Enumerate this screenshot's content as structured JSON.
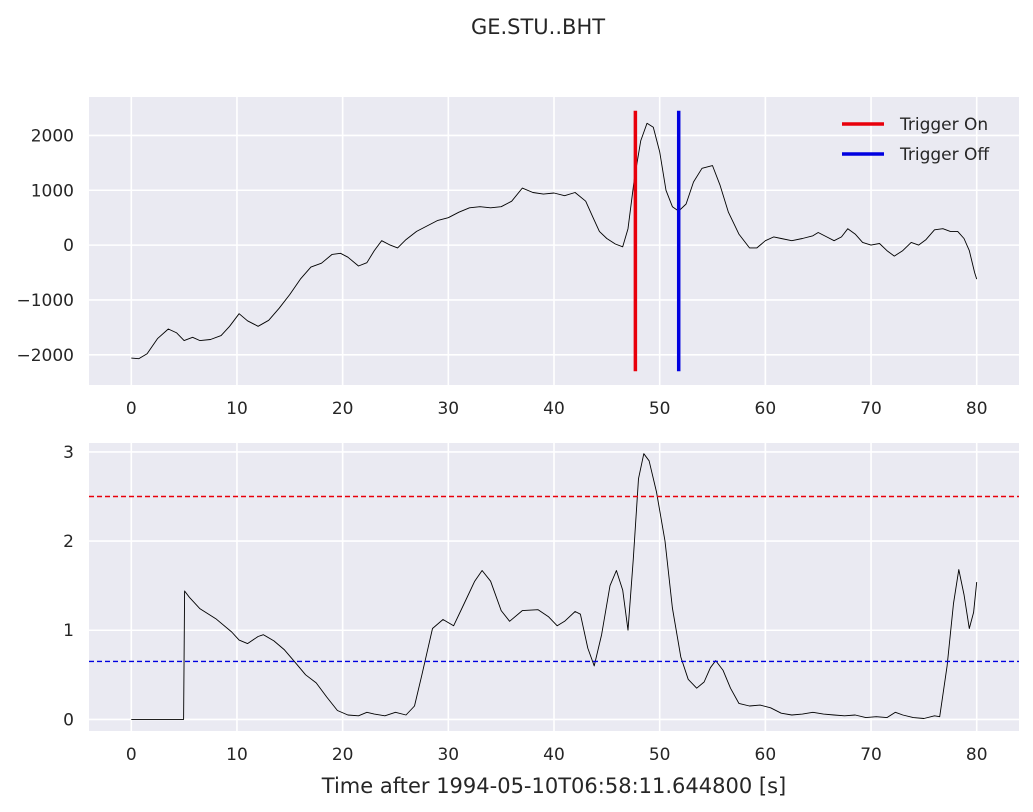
{
  "figure": {
    "title": "GE.STU..BHT",
    "xlabel": "Time after 1994-05-10T06:58:11.644800 [s]"
  },
  "chart_data": [
    {
      "type": "line",
      "name": "trace",
      "xlim": [
        -4,
        84
      ],
      "ylim": [
        -2550,
        2700
      ],
      "xticks": [
        0,
        10,
        20,
        30,
        40,
        50,
        60,
        70,
        80
      ],
      "yticks": [
        -2000,
        -1000,
        0,
        1000,
        2000
      ],
      "ytick_labels": [
        "−2000",
        "−1000",
        "0",
        "1000",
        "2000"
      ],
      "grid": true,
      "legend": {
        "placement": "top-right",
        "entries": [
          {
            "label": "Trigger On",
            "color": "#e8000b"
          },
          {
            "label": "Trigger Off",
            "color": "#0000e0"
          }
        ]
      },
      "trigger_on": {
        "x": 47.7,
        "ymin": -2300,
        "ymax": 2450,
        "color": "#e8000b"
      },
      "trigger_off": {
        "x": 51.8,
        "ymin": -2300,
        "ymax": 2450,
        "color": "#0000e0"
      },
      "series": [
        {
          "color": "#000000",
          "points": [
            [
              0,
              -2060
            ],
            [
              0.7,
              -2070
            ],
            [
              1.5,
              -1980
            ],
            [
              2.5,
              -1700
            ],
            [
              3.5,
              -1530
            ],
            [
              4.3,
              -1600
            ],
            [
              5,
              -1740
            ],
            [
              5.8,
              -1680
            ],
            [
              6.5,
              -1740
            ],
            [
              7.5,
              -1720
            ],
            [
              8.5,
              -1650
            ],
            [
              9.3,
              -1480
            ],
            [
              10.2,
              -1250
            ],
            [
              11,
              -1380
            ],
            [
              12,
              -1480
            ],
            [
              13,
              -1370
            ],
            [
              14,
              -1150
            ],
            [
              15,
              -900
            ],
            [
              16,
              -620
            ],
            [
              17,
              -400
            ],
            [
              18,
              -330
            ],
            [
              19,
              -170
            ],
            [
              19.8,
              -150
            ],
            [
              20.5,
              -220
            ],
            [
              21.5,
              -380
            ],
            [
              22.3,
              -320
            ],
            [
              23,
              -100
            ],
            [
              23.7,
              80
            ],
            [
              24.5,
              0
            ],
            [
              25.2,
              -50
            ],
            [
              26,
              100
            ],
            [
              27,
              250
            ],
            [
              28,
              350
            ],
            [
              29,
              450
            ],
            [
              30,
              500
            ],
            [
              31,
              600
            ],
            [
              32,
              680
            ],
            [
              33,
              700
            ],
            [
              34,
              680
            ],
            [
              35,
              700
            ],
            [
              36,
              800
            ],
            [
              37,
              1040
            ],
            [
              38,
              960
            ],
            [
              39,
              930
            ],
            [
              40,
              950
            ],
            [
              41,
              900
            ],
            [
              42,
              960
            ],
            [
              43,
              800
            ],
            [
              43.7,
              500
            ],
            [
              44.3,
              250
            ],
            [
              45,
              120
            ],
            [
              45.8,
              20
            ],
            [
              46.5,
              -30
            ],
            [
              47,
              300
            ],
            [
              47.6,
              1200
            ],
            [
              48.2,
              1900
            ],
            [
              48.8,
              2220
            ],
            [
              49.4,
              2150
            ],
            [
              50,
              1700
            ],
            [
              50.6,
              1000
            ],
            [
              51.2,
              700
            ],
            [
              51.8,
              620
            ],
            [
              52.5,
              750
            ],
            [
              53.2,
              1150
            ],
            [
              54,
              1400
            ],
            [
              55,
              1450
            ],
            [
              55.7,
              1100
            ],
            [
              56.5,
              600
            ],
            [
              57.5,
              200
            ],
            [
              58.5,
              -50
            ],
            [
              59.2,
              -50
            ],
            [
              60,
              80
            ],
            [
              60.8,
              150
            ],
            [
              61.5,
              120
            ],
            [
              62.5,
              80
            ],
            [
              63.5,
              120
            ],
            [
              64.5,
              170
            ],
            [
              65,
              230
            ],
            [
              65.8,
              150
            ],
            [
              66.5,
              80
            ],
            [
              67.2,
              150
            ],
            [
              67.8,
              300
            ],
            [
              68.5,
              200
            ],
            [
              69.2,
              50
            ],
            [
              70,
              0
            ],
            [
              70.8,
              30
            ],
            [
              71.5,
              -100
            ],
            [
              72.2,
              -200
            ],
            [
              73,
              -100
            ],
            [
              73.8,
              50
            ],
            [
              74.5,
              0
            ],
            [
              75.2,
              100
            ],
            [
              76,
              280
            ],
            [
              76.8,
              300
            ],
            [
              77.5,
              250
            ],
            [
              78.2,
              250
            ],
            [
              78.8,
              120
            ],
            [
              79.3,
              -100
            ],
            [
              79.8,
              -500
            ],
            [
              80,
              -620
            ]
          ]
        }
      ]
    },
    {
      "type": "line",
      "name": "characteristic-function",
      "xlim": [
        -4,
        84
      ],
      "ylim": [
        -0.13,
        3.1
      ],
      "xticks": [
        0,
        10,
        20,
        30,
        40,
        50,
        60,
        70,
        80
      ],
      "yticks": [
        0,
        1,
        2,
        3
      ],
      "grid": true,
      "thresholds": [
        {
          "name": "on",
          "y": 2.5,
          "color": "#e8000b",
          "style": "dashed"
        },
        {
          "name": "off",
          "y": 0.65,
          "color": "#0000e0",
          "style": "dashed"
        }
      ],
      "series": [
        {
          "color": "#000000",
          "points": [
            [
              0,
              0
            ],
            [
              4.95,
              0
            ],
            [
              5.05,
              1.44
            ],
            [
              5.5,
              1.37
            ],
            [
              6.5,
              1.24
            ],
            [
              8,
              1.13
            ],
            [
              9.5,
              0.98
            ],
            [
              10.2,
              0.89
            ],
            [
              11,
              0.85
            ],
            [
              12,
              0.93
            ],
            [
              12.5,
              0.95
            ],
            [
              13.5,
              0.88
            ],
            [
              14.5,
              0.78
            ],
            [
              15.5,
              0.64
            ],
            [
              16.5,
              0.5
            ],
            [
              17.5,
              0.41
            ],
            [
              18.5,
              0.25
            ],
            [
              19.5,
              0.1
            ],
            [
              20.5,
              0.05
            ],
            [
              21.5,
              0.04
            ],
            [
              22.3,
              0.08
            ],
            [
              23,
              0.06
            ],
            [
              24,
              0.04
            ],
            [
              25,
              0.08
            ],
            [
              26,
              0.05
            ],
            [
              26.8,
              0.15
            ],
            [
              27.5,
              0.5
            ],
            [
              28.5,
              1.02
            ],
            [
              29.5,
              1.12
            ],
            [
              30.5,
              1.05
            ],
            [
              31.5,
              1.3
            ],
            [
              32.5,
              1.55
            ],
            [
              33.2,
              1.67
            ],
            [
              34,
              1.55
            ],
            [
              35,
              1.22
            ],
            [
              35.8,
              1.1
            ],
            [
              37,
              1.22
            ],
            [
              38.5,
              1.23
            ],
            [
              39.5,
              1.15
            ],
            [
              40.3,
              1.05
            ],
            [
              41,
              1.1
            ],
            [
              42,
              1.21
            ],
            [
              42.5,
              1.18
            ],
            [
              43.2,
              0.8
            ],
            [
              43.8,
              0.6
            ],
            [
              44.5,
              0.95
            ],
            [
              45.3,
              1.5
            ],
            [
              45.9,
              1.67
            ],
            [
              46.5,
              1.45
            ],
            [
              47,
              1.0
            ],
            [
              47.5,
              1.8
            ],
            [
              48,
              2.7
            ],
            [
              48.5,
              2.98
            ],
            [
              49,
              2.9
            ],
            [
              49.7,
              2.55
            ],
            [
              50.5,
              2.0
            ],
            [
              51.2,
              1.25
            ],
            [
              52,
              0.7
            ],
            [
              52.7,
              0.45
            ],
            [
              53.5,
              0.35
            ],
            [
              54.2,
              0.42
            ],
            [
              54.8,
              0.58
            ],
            [
              55.3,
              0.66
            ],
            [
              56,
              0.55
            ],
            [
              56.7,
              0.35
            ],
            [
              57.5,
              0.18
            ],
            [
              58.5,
              0.15
            ],
            [
              59.5,
              0.16
            ],
            [
              60.5,
              0.13
            ],
            [
              61.5,
              0.07
            ],
            [
              62.5,
              0.05
            ],
            [
              63.5,
              0.06
            ],
            [
              64.5,
              0.08
            ],
            [
              65.5,
              0.06
            ],
            [
              66.5,
              0.05
            ],
            [
              67.5,
              0.04
            ],
            [
              68.5,
              0.05
            ],
            [
              69.5,
              0.02
            ],
            [
              70.5,
              0.03
            ],
            [
              71.5,
              0.02
            ],
            [
              72.3,
              0.08
            ],
            [
              73,
              0.05
            ],
            [
              74,
              0.02
            ],
            [
              75,
              0.01
            ],
            [
              76,
              0.04
            ],
            [
              76.5,
              0.03
            ],
            [
              77.2,
              0.6
            ],
            [
              77.8,
              1.3
            ],
            [
              78.3,
              1.68
            ],
            [
              78.8,
              1.4
            ],
            [
              79.3,
              1.02
            ],
            [
              79.7,
              1.2
            ],
            [
              80,
              1.54
            ]
          ]
        }
      ]
    }
  ]
}
